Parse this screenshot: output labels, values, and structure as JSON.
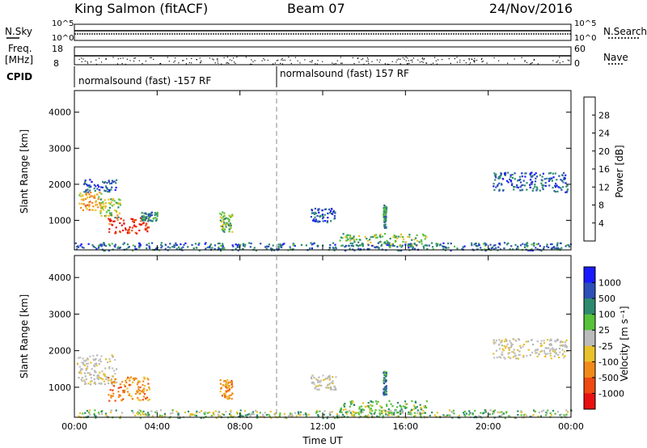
{
  "header": {
    "station": "King Salmon (fitACF)",
    "beam": "Beam 07",
    "date": "24/Nov/2016"
  },
  "summary_panels": {
    "nsky_label": "N.Sky",
    "nsearch_label": "N.Search",
    "noise_scale_top": "10^5",
    "noise_scale_bottom": "10^0",
    "freq_label_line1": "Freq.",
    "freq_label_line2": "[MHz]",
    "freq_ticks": [
      "18",
      "8"
    ],
    "nave_label": "Nave",
    "nave_ticks": [
      "60",
      "0"
    ],
    "cpid_label": "CPID",
    "cpid_segments": [
      {
        "label": "normalsound (fast) -157 RF",
        "start_hour": 0,
        "end_hour": 10
      },
      {
        "label": "normalsound (fast) 157 RF",
        "start_hour": 10,
        "end_hour": 24
      }
    ]
  },
  "chart_data": [
    {
      "type": "heatmap",
      "name": "power",
      "ylabel": "Slant Range [km]",
      "xlabel": "",
      "xlim": [
        0,
        24
      ],
      "ylim": [
        180,
        4600
      ],
      "yticks": [
        1000,
        2000,
        3000,
        4000
      ],
      "colorbar": {
        "label": "Power [dB]",
        "range": [
          0,
          32
        ],
        "ticks": [
          4,
          8,
          12,
          16,
          20,
          24,
          28
        ],
        "colors": [
          "#1a1aff",
          "#2e4fb8",
          "#2e8a6e",
          "#58c23a",
          "#e8c22a",
          "#f28a1a",
          "#ee4a12",
          "#e81010"
        ]
      },
      "echo_regions": [
        {
          "t0": 0.2,
          "t1": 1.3,
          "r0": 1300,
          "r1": 1800,
          "level": 20
        },
        {
          "t0": 1.2,
          "t1": 2.2,
          "r0": 1100,
          "r1": 1650,
          "level": 16
        },
        {
          "t0": 1.6,
          "t1": 3.6,
          "r0": 650,
          "r1": 1100,
          "level": 28
        },
        {
          "t0": 3.2,
          "t1": 4.0,
          "r0": 1000,
          "r1": 1250,
          "level": 10
        },
        {
          "t0": 0.4,
          "t1": 2.0,
          "r0": 1800,
          "r1": 2150,
          "level": 6
        },
        {
          "t0": 7.0,
          "t1": 7.6,
          "r0": 700,
          "r1": 1250,
          "level": 14
        },
        {
          "t0": 11.4,
          "t1": 12.6,
          "r0": 950,
          "r1": 1350,
          "level": 6
        },
        {
          "t0": 14.9,
          "t1": 15.05,
          "r0": 800,
          "r1": 1450,
          "level": 10
        },
        {
          "t0": 12.8,
          "t1": 17.0,
          "r0": 300,
          "r1": 650,
          "level": 14
        },
        {
          "t0": 20.2,
          "t1": 23.8,
          "r0": 1800,
          "r1": 2350,
          "level": 6
        },
        {
          "t0": 0.0,
          "t1": 24.0,
          "r0": 180,
          "r1": 400,
          "level": 8
        }
      ]
    },
    {
      "type": "heatmap",
      "name": "velocity",
      "ylabel": "Slant Range [km]",
      "xlabel": "Time UT",
      "xlim": [
        0,
        24
      ],
      "ylim": [
        180,
        4600
      ],
      "yticks": [
        1000,
        2000,
        3000,
        4000
      ],
      "xticks": [
        "00:00",
        "04:00",
        "08:00",
        "12:00",
        "16:00",
        "20:00",
        "00:00"
      ],
      "colorbar": {
        "label": "Velocity [m s⁻¹]",
        "bins": [
          "1000",
          "500",
          "100",
          "25",
          "-25",
          "-100",
          "-500",
          "-1000"
        ],
        "colors": [
          "#1a1aff",
          "#2e4fb8",
          "#2e8a6e",
          "#58c23a",
          "#bbbbbb",
          "#e8c22a",
          "#f28a1a",
          "#ee4a12",
          "#e81010"
        ]
      },
      "echo_regions": [
        {
          "t0": 0.1,
          "t1": 2.0,
          "r0": 1100,
          "r1": 1900,
          "bin": "gray"
        },
        {
          "t0": 1.6,
          "t1": 3.6,
          "r0": 650,
          "r1": 1300,
          "bin": "orange"
        },
        {
          "t0": 7.0,
          "t1": 7.6,
          "r0": 700,
          "r1": 1250,
          "bin": "orange"
        },
        {
          "t0": 11.4,
          "t1": 12.6,
          "r0": 950,
          "r1": 1350,
          "bin": "gray"
        },
        {
          "t0": 14.9,
          "t1": 15.05,
          "r0": 800,
          "r1": 1450,
          "bin": "blue"
        },
        {
          "t0": 12.8,
          "t1": 17.0,
          "r0": 300,
          "r1": 650,
          "bin": "green"
        },
        {
          "t0": 20.2,
          "t1": 23.8,
          "r0": 1800,
          "r1": 2350,
          "bin": "gray"
        },
        {
          "t0": 0.0,
          "t1": 24.0,
          "r0": 180,
          "r1": 400,
          "bin": "mixed"
        }
      ]
    }
  ]
}
